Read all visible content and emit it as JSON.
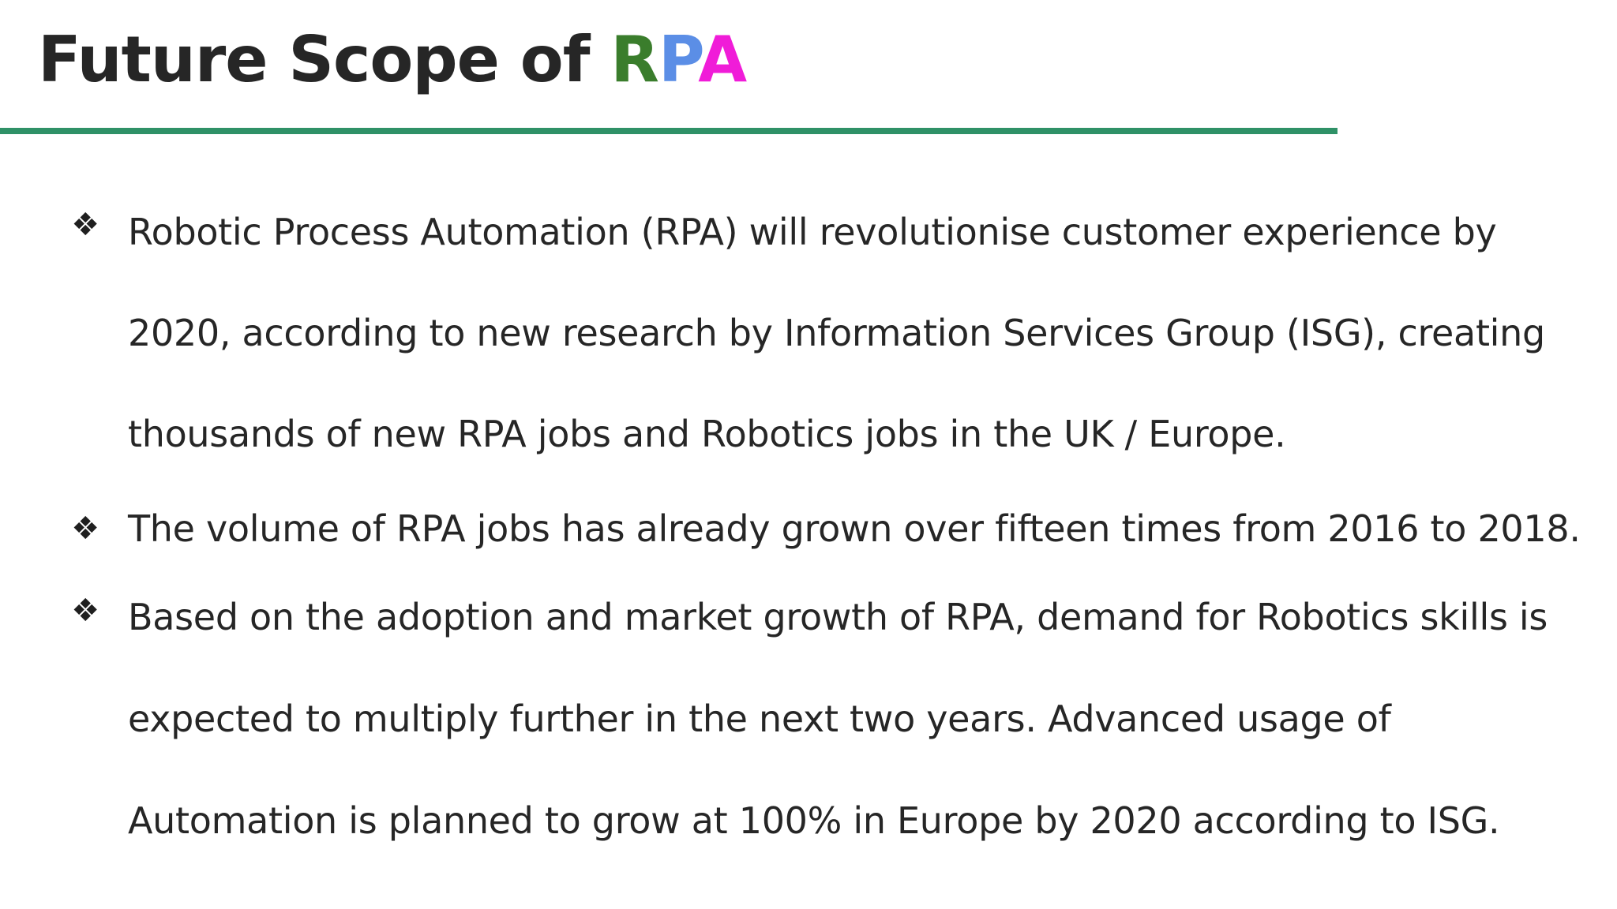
{
  "slide": {
    "title_prefix": "Future Scope of ",
    "title_letters": [
      "R",
      "P",
      "A"
    ],
    "accent_colors": {
      "R": "#3a7d2c",
      "P": "#5b8ee6",
      "A": "#f01cd8",
      "rule": "#2f9167"
    },
    "bullet_glyph": "❖",
    "bullets": [
      "Robotic Process Automation (RPA) will revolutionise customer experience by 2020, according to new research by Information Services Group (ISG), creating thousands of new RPA jobs and Robotics jobs in the UK / Europe.",
      "The volume of RPA jobs has already grown over fifteen times from 2016 to 2018.",
      "Based on the adoption and market growth of RPA, demand for Robotics skills is expected to multiply further in the next two years. Advanced usage of Automation is planned to grow at 100% in Europe by 2020 according to ISG."
    ]
  }
}
